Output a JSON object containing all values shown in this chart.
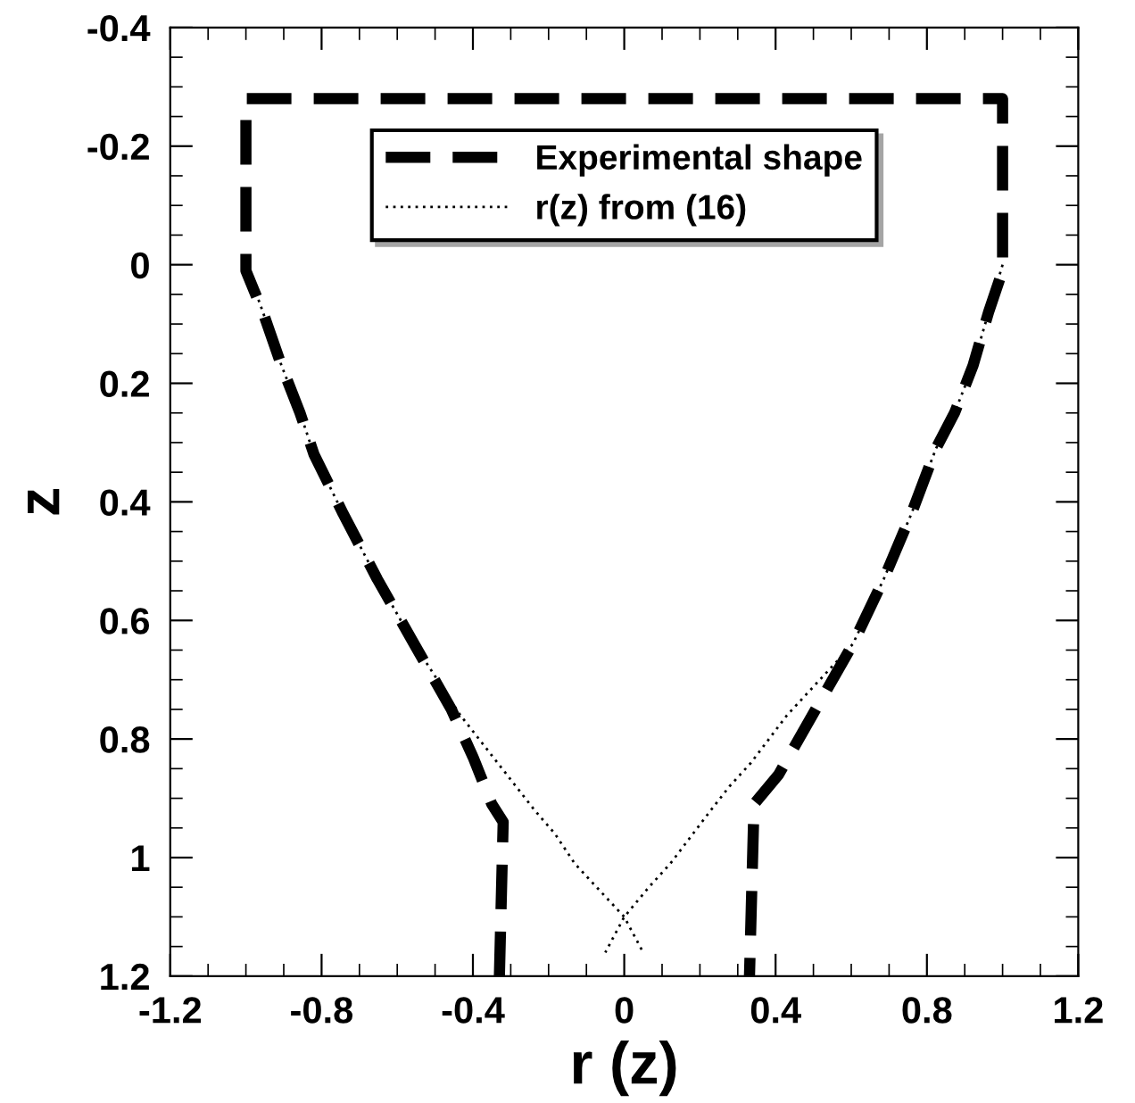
{
  "chart_data": {
    "type": "line",
    "xlabel": "r (z)",
    "ylabel": "z",
    "xlim": [
      -1.2,
      1.2
    ],
    "ylim": [
      1.2,
      -0.4
    ],
    "xticks": [
      -1.2,
      -0.8,
      -0.4,
      0,
      0.4,
      0.8,
      1.2
    ],
    "yticks": [
      -0.4,
      -0.2,
      0,
      0.2,
      0.4,
      0.6,
      0.8,
      1,
      1.2
    ],
    "grid": false,
    "legend": "top",
    "marker": "none",
    "series": [
      {
        "name": "Experimental shape",
        "color": "#000000",
        "line_style": "dashed",
        "x": [
          -0.33,
          -0.32,
          -0.35,
          -0.4,
          -0.457,
          -0.555,
          -0.653,
          -0.743,
          -0.82,
          -0.857,
          -0.906,
          -0.955,
          -1.0,
          -1.0,
          1.0,
          1.0,
          0.963,
          0.922,
          0.873,
          0.824,
          0.759,
          0.686,
          0.604,
          0.506,
          0.408,
          0.343,
          0.331
        ],
        "values": [
          1.2,
          0.94,
          0.91,
          0.83,
          0.75,
          0.64,
          0.53,
          0.42,
          0.32,
          0.25,
          0.17,
          0.08,
          0.01,
          -0.28,
          -0.28,
          0.01,
          0.08,
          0.17,
          0.25,
          0.31,
          0.42,
          0.53,
          0.64,
          0.75,
          0.86,
          0.91,
          1.2
        ]
      },
      {
        "name": "r(z) from (16)",
        "color": "#000000",
        "line_style": "dotted",
        "x": [
          -1.0,
          -0.955,
          -0.906,
          -0.857,
          -0.82,
          -0.743,
          -0.653,
          -0.555,
          -0.433,
          -0.335,
          -0.237,
          -0.183,
          -0.131,
          -0.073,
          0,
          0.05,
          null,
          1.0,
          0.963,
          0.922,
          0.873,
          0.824,
          0.759,
          0.686,
          0.604,
          0.43,
          0.335,
          0.278,
          0.229,
          0.122,
          0.065,
          0,
          -0.05
        ],
        "values": [
          0.0,
          0.08,
          0.17,
          0.25,
          0.32,
          0.42,
          0.53,
          0.64,
          0.76,
          0.84,
          0.92,
          0.96,
          1.01,
          1.05,
          1.1,
          1.16,
          null,
          0.0,
          0.08,
          0.17,
          0.25,
          0.31,
          0.42,
          0.53,
          0.64,
          0.76,
          0.84,
          0.88,
          0.92,
          1.01,
          1.05,
          1.1,
          1.16
        ]
      }
    ]
  }
}
